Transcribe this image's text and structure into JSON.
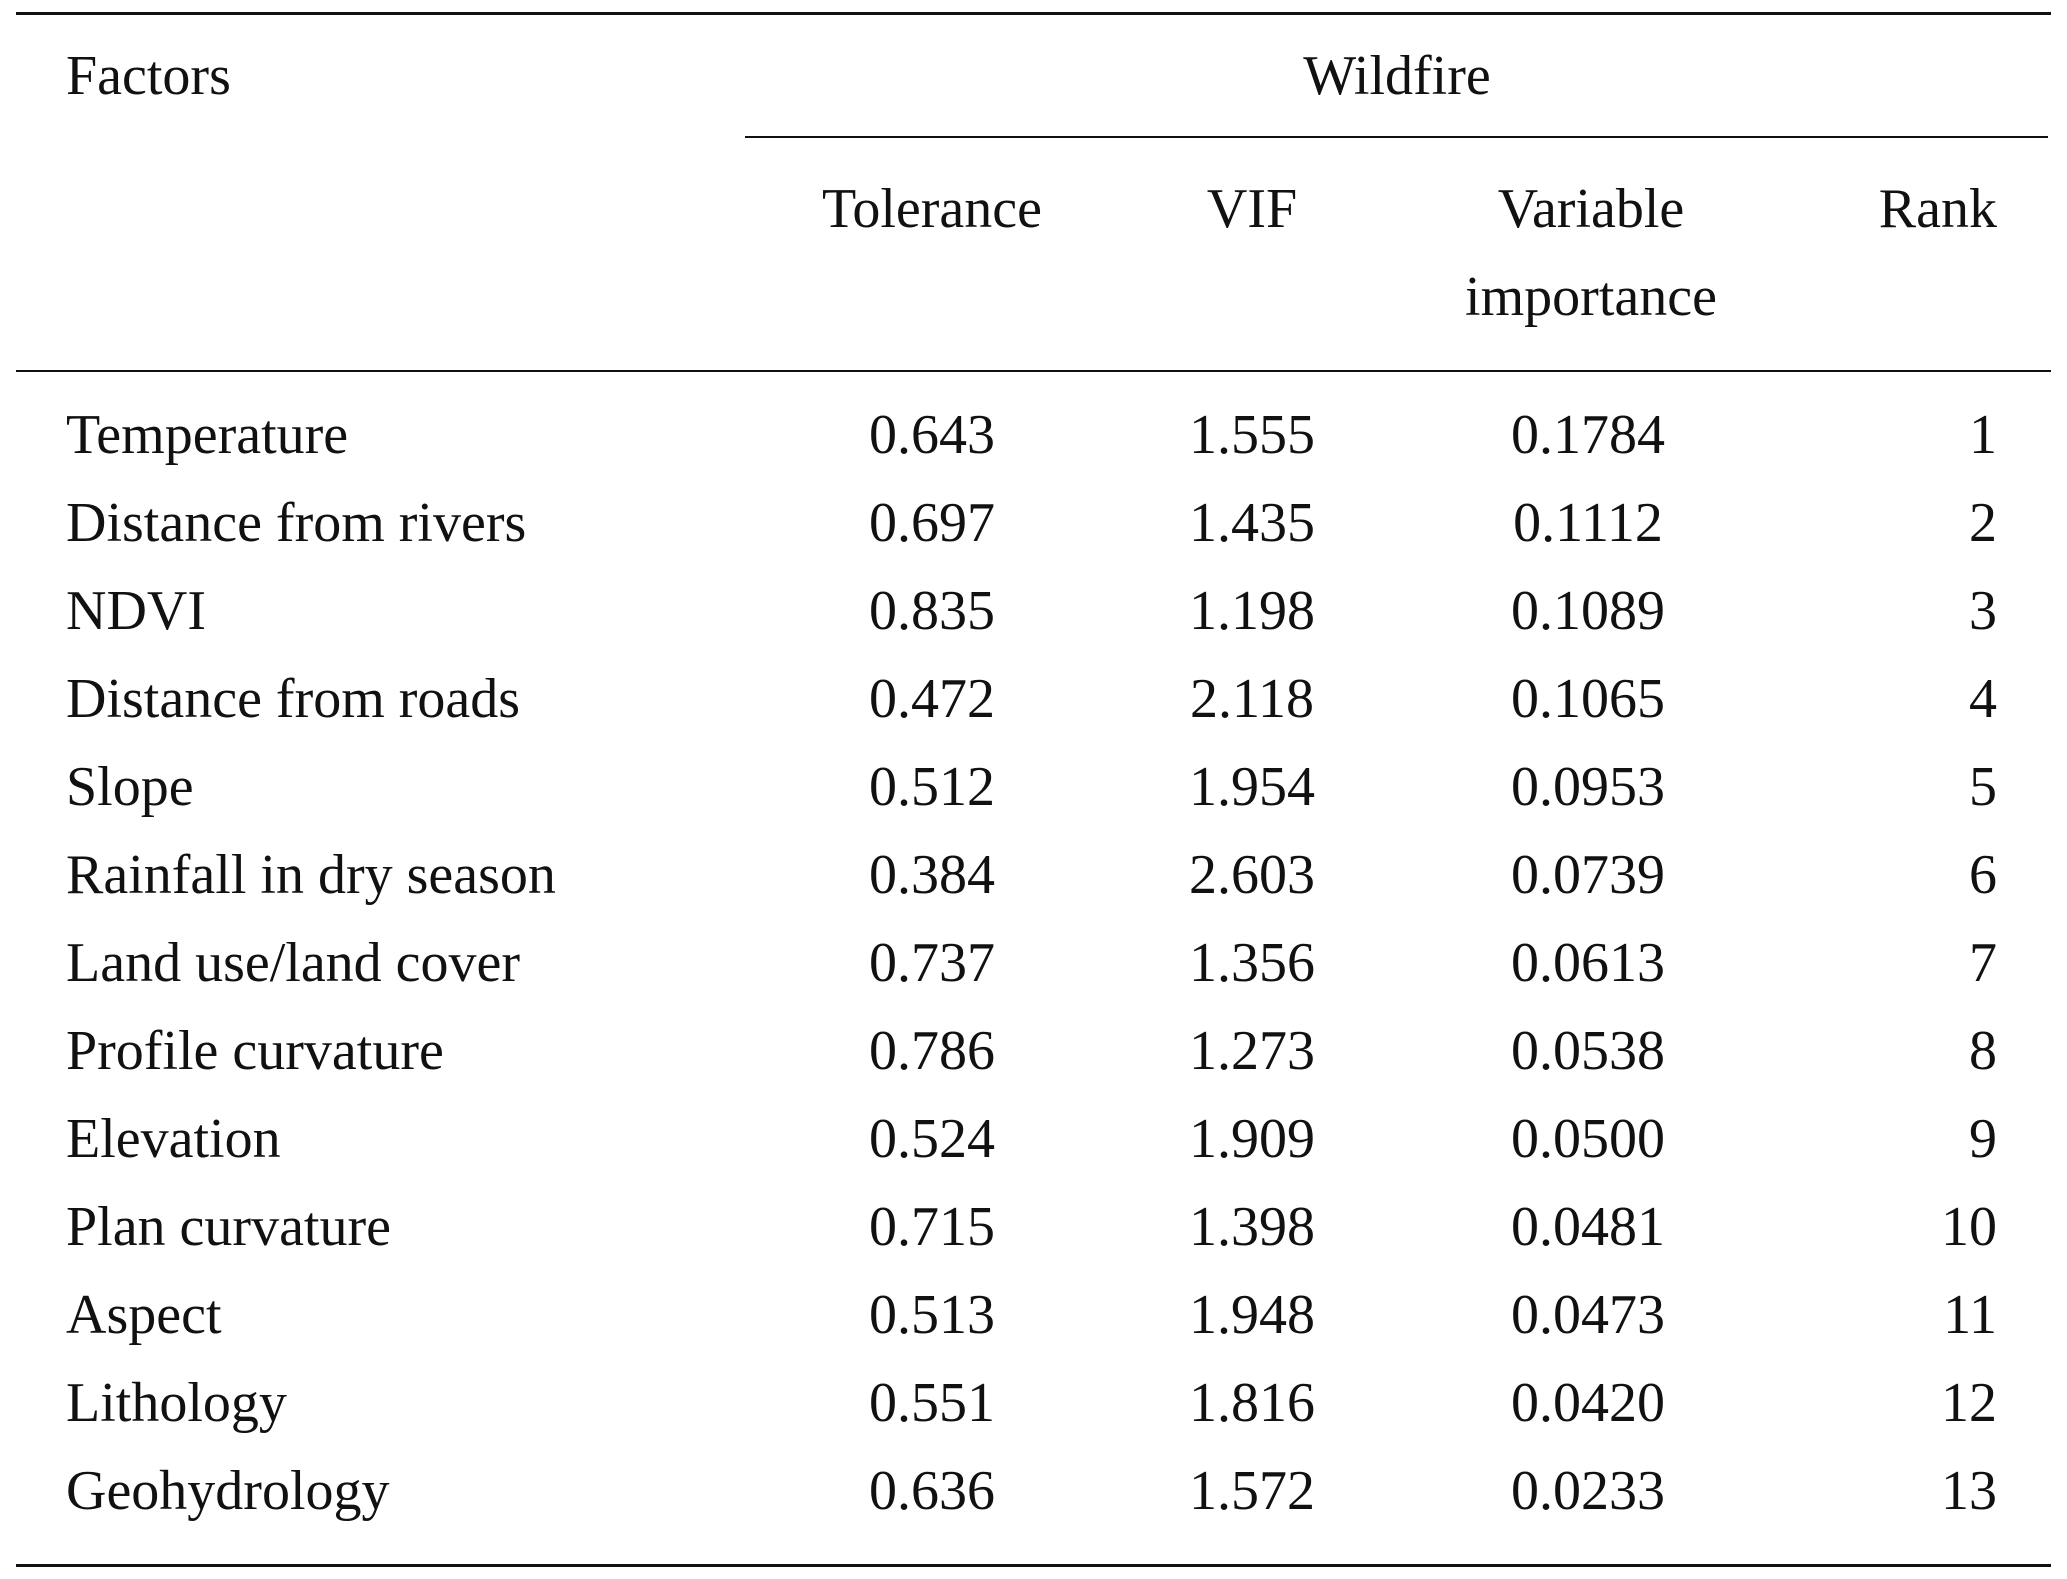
{
  "table": {
    "header": {
      "factors": "Factors",
      "group": "Wildfire",
      "columns": [
        "Tolerance",
        "VIF",
        "Variable importance",
        "Rank"
      ]
    },
    "rows": [
      [
        "Temperature",
        "0.643",
        "1.555",
        "0.1784",
        "1"
      ],
      [
        "Distance from rivers",
        "0.697",
        "1.435",
        "0.1112",
        "2"
      ],
      [
        "NDVI",
        "0.835",
        "1.198",
        "0.1089",
        "3"
      ],
      [
        "Distance from roads",
        "0.472",
        "2.118",
        "0.1065",
        "4"
      ],
      [
        "Slope",
        "0.512",
        "1.954",
        "0.0953",
        "5"
      ],
      [
        "Rainfall in dry season",
        "0.384",
        "2.603",
        "0.0739",
        "6"
      ],
      [
        "Land use/land cover",
        "0.737",
        "1.356",
        "0.0613",
        "7"
      ],
      [
        "Profile curvature",
        "0.786",
        "1.273",
        "0.0538",
        "8"
      ],
      [
        "Elevation",
        "0.524",
        "1.909",
        "0.0500",
        "9"
      ],
      [
        "Plan curvature",
        "0.715",
        "1.398",
        "0.0481",
        "10"
      ],
      [
        "Aspect",
        "0.513",
        "1.948",
        "0.0473",
        "11"
      ],
      [
        "Lithology",
        "0.551",
        "1.816",
        "0.0420",
        "12"
      ],
      [
        "Geohydrology",
        "0.636",
        "1.572",
        "0.0233",
        "13"
      ]
    ]
  }
}
